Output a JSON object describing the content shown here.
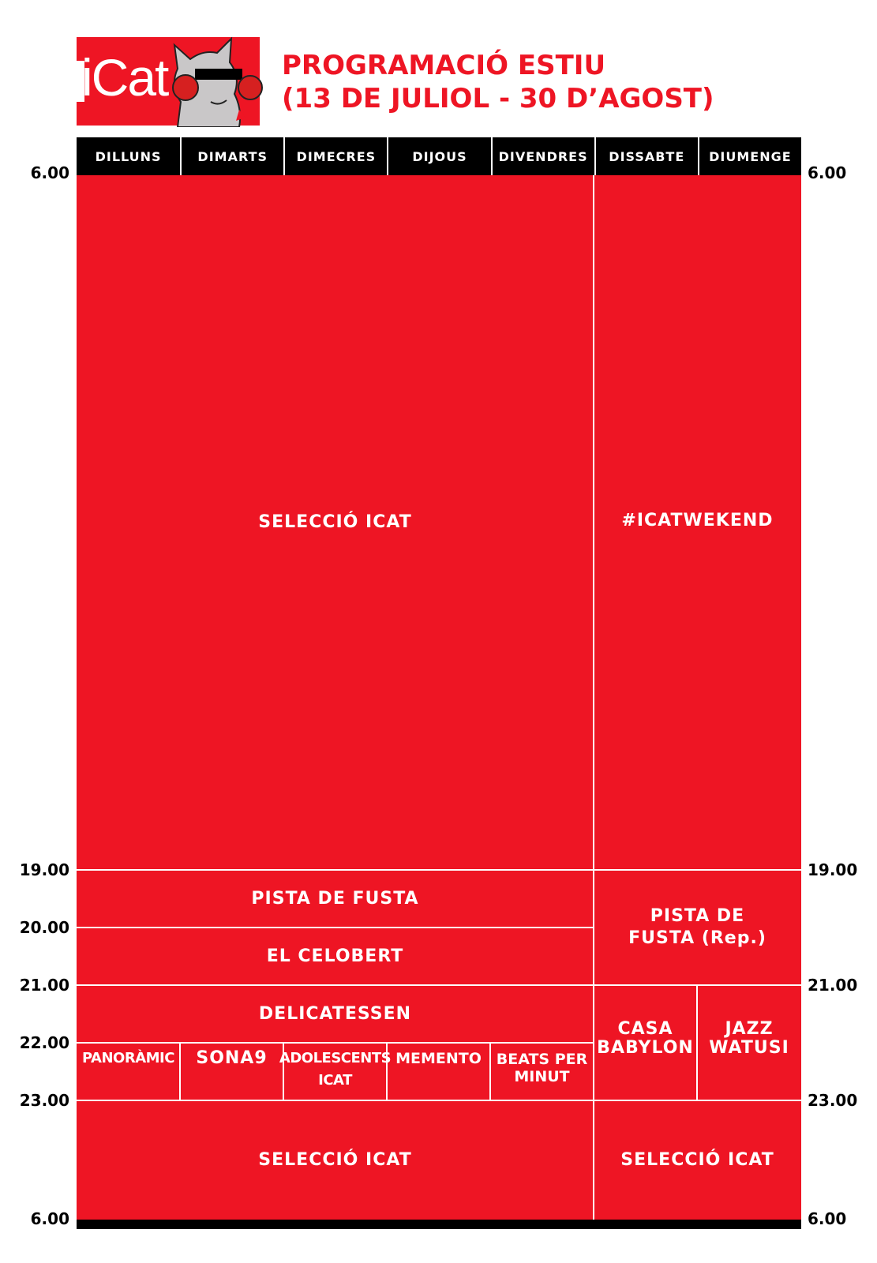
{
  "logo": {
    "brand": "iCat",
    "primary_color": "#ee1524"
  },
  "title": "PROGRAMACIÓ ESTIU\n(13 DE JULIOL - 30 D’AGOST)",
  "days": [
    "DILLUNS",
    "DIMARTS",
    "DIMECRES",
    "DIJOUS",
    "DIVENDRES",
    "DISSABTE",
    "DIUMENGE"
  ],
  "times": {
    "t6": "6.00",
    "t19": "19.00",
    "t20": "20.00",
    "t21": "21.00",
    "t22": "22.00",
    "t23": "23.00",
    "t6_end": "6.00"
  },
  "schedule": {
    "weekday_morning": "SELECCIÓ ICAT",
    "weekend_morning": "#ICATWEKEND",
    "weekday_19": "PISTA DE FUSTA",
    "weekday_20": "EL CELOBERT",
    "weekend_19": "PISTA DE\nFUSTA (Rep.)",
    "weekday_21": "DELICATESSEN",
    "mon_22": "PANORÀMIC",
    "tue_22": "SONA9",
    "wed_22": "ADOLESCENTS\nICAT",
    "thu_22": "MEMENTO",
    "fri_22": "BEATS PER\nMINUT",
    "sat_21": "CASA\nBABYLON",
    "sun_21": "JAZZ\nWATUSI",
    "weekday_night": "SELECCIÓ ICAT",
    "weekend_night": "SELECCIÓ ICAT"
  }
}
